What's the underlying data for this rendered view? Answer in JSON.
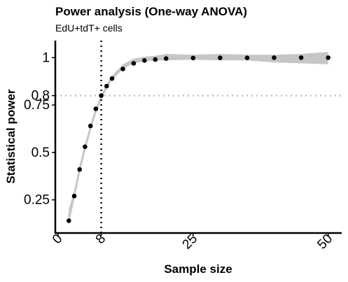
{
  "chart_data": {
    "type": "scatter",
    "title": "Power analysis (One-way ANOVA)",
    "subtitle": "EdU+tdT+ cells",
    "xlabel": "Sample size",
    "ylabel": "Statistical power",
    "xlim": [
      -0.5,
      52.5
    ],
    "ylim": [
      0.075,
      1.09
    ],
    "x_ticks": [
      0,
      8,
      25,
      50
    ],
    "x_tick_labels": [
      "0",
      "8",
      "25",
      "50"
    ],
    "y_ticks": [
      0.25,
      0.5,
      0.75,
      0.8,
      1
    ],
    "y_tick_labels": [
      "0.25",
      "0.5",
      "0.75",
      "0.8",
      "1"
    ],
    "reference_lines": [
      {
        "orientation": "vertical",
        "value": 8,
        "style": "dotted",
        "color": "#000000"
      },
      {
        "orientation": "horizontal",
        "value": 0.8,
        "style": "dotted",
        "color": "#c0c0c0"
      }
    ],
    "points": {
      "x": [
        2,
        3,
        4,
        5,
        6,
        7,
        8,
        9,
        10,
        12,
        14,
        16,
        18,
        20,
        25,
        30,
        35,
        40,
        45,
        50
      ],
      "y": [
        0.14,
        0.27,
        0.41,
        0.53,
        0.64,
        0.73,
        0.8,
        0.85,
        0.89,
        0.94,
        0.97,
        0.985,
        0.99,
        0.995,
        0.998,
        0.999,
        0.999,
        1.0,
        1.0,
        1.0
      ],
      "color": "#000000"
    },
    "smooth": {
      "line_color": "#c6c6c6",
      "band_color": "#c6c6c6",
      "band_upper": [
        0.2,
        0.3,
        0.43,
        0.545,
        0.645,
        0.735,
        0.805,
        0.86,
        0.905,
        0.965,
        0.995,
        1.005,
        1.01,
        1.02,
        1.015,
        1.02,
        1.015,
        1.015,
        1.02,
        1.03
      ],
      "band_lower": [
        0.12,
        0.25,
        0.39,
        0.505,
        0.615,
        0.705,
        0.775,
        0.835,
        0.88,
        0.94,
        0.97,
        0.98,
        0.985,
        0.985,
        0.99,
        0.985,
        0.985,
        0.975,
        0.97,
        0.965
      ]
    },
    "grid": false,
    "legend": "none"
  }
}
